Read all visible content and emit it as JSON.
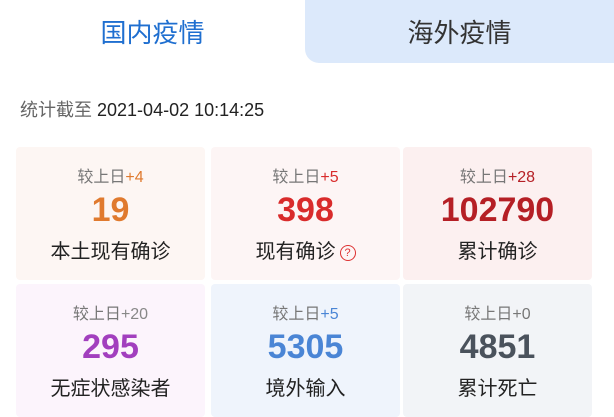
{
  "tabs": [
    {
      "label": "国内疫情",
      "active": true
    },
    {
      "label": "海外疫情",
      "active": false
    }
  ],
  "timestamp": {
    "label": "统计截至",
    "value": "2021-04-02 10:14:25"
  },
  "delta_prefix": "较上日",
  "cards": [
    {
      "delta": "+4",
      "value": "19",
      "label": "本土现有确诊",
      "color": "#e07a2e",
      "delta_color": "#e07a2e",
      "bg": "#fdf6f3"
    },
    {
      "delta": "+5",
      "value": "398",
      "label": "现有确诊",
      "color": "#d92b2b",
      "delta_color": "#d92b2b",
      "bg": "#fdf5f5",
      "help_icon": "?"
    },
    {
      "delta": "+28",
      "value": "102790",
      "label": "累计确诊",
      "color": "#b51f25",
      "delta_color": "#b51f25",
      "bg": "#fcf0f0"
    },
    {
      "delta": "+20",
      "value": "295",
      "label": "无症状感染者",
      "color": "#a23fbe",
      "delta_color": "#888",
      "bg": "#fcf4fc"
    },
    {
      "delta": "+5",
      "value": "5305",
      "label": "境外输入",
      "color": "#4a85d5",
      "delta_color": "#4a85d5",
      "bg": "#eff4fc"
    },
    {
      "delta": "+0",
      "value": "4851",
      "label": "累计死亡",
      "color": "#4a525c",
      "delta_color": "#777",
      "bg": "#f2f4f7"
    }
  ]
}
